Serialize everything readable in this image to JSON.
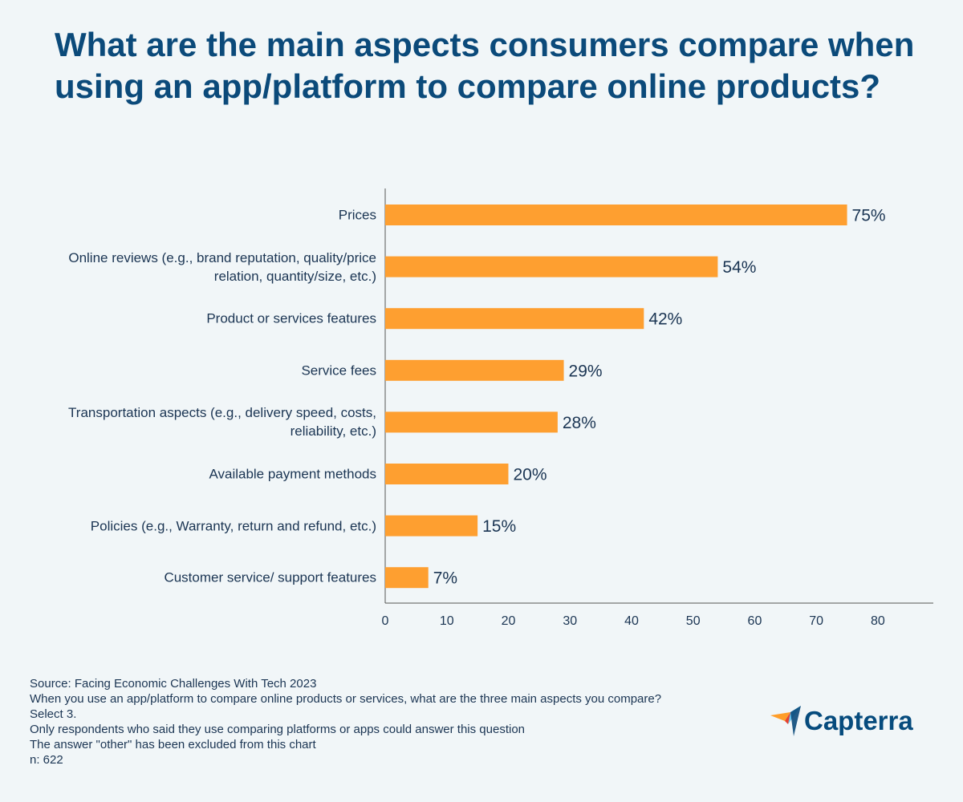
{
  "chart_data": {
    "type": "hbar",
    "title": "What are the main aspects consumers compare when using an app/platform to compare online products?",
    "categories": [
      "Prices",
      "Online reviews (e.g., brand reputation, quality/price relation, quantity/size, etc.)",
      "Product or services features",
      "Service fees",
      "Transportation aspects (e.g., delivery speed, costs, reliability, etc.)",
      "Available payment methods",
      "Policies (e.g., Warranty, return and refund, etc.)",
      "Customer service/ support features"
    ],
    "values": [
      75,
      54,
      42,
      29,
      28,
      20,
      15,
      7
    ],
    "value_labels": [
      "75%",
      "54%",
      "42%",
      "29%",
      "28%",
      "20%",
      "15%",
      "7%"
    ],
    "color": "#fe9f30",
    "xlim": [
      0,
      89
    ],
    "xticks": [
      0,
      10,
      20,
      30,
      40,
      50,
      60,
      70,
      80
    ],
    "grid": false,
    "notes": [
      "Source: Facing Economic Challenges With Tech 2023",
      "When you use an app/platform to compare online products or services, what are the three main aspects you compare? Select 3.",
      "Only respondents who said they use comparing platforms or apps could answer this question",
      "The answer \"other\" has been excluded from this chart",
      "n: 622"
    ],
    "logo": "Capterra"
  }
}
